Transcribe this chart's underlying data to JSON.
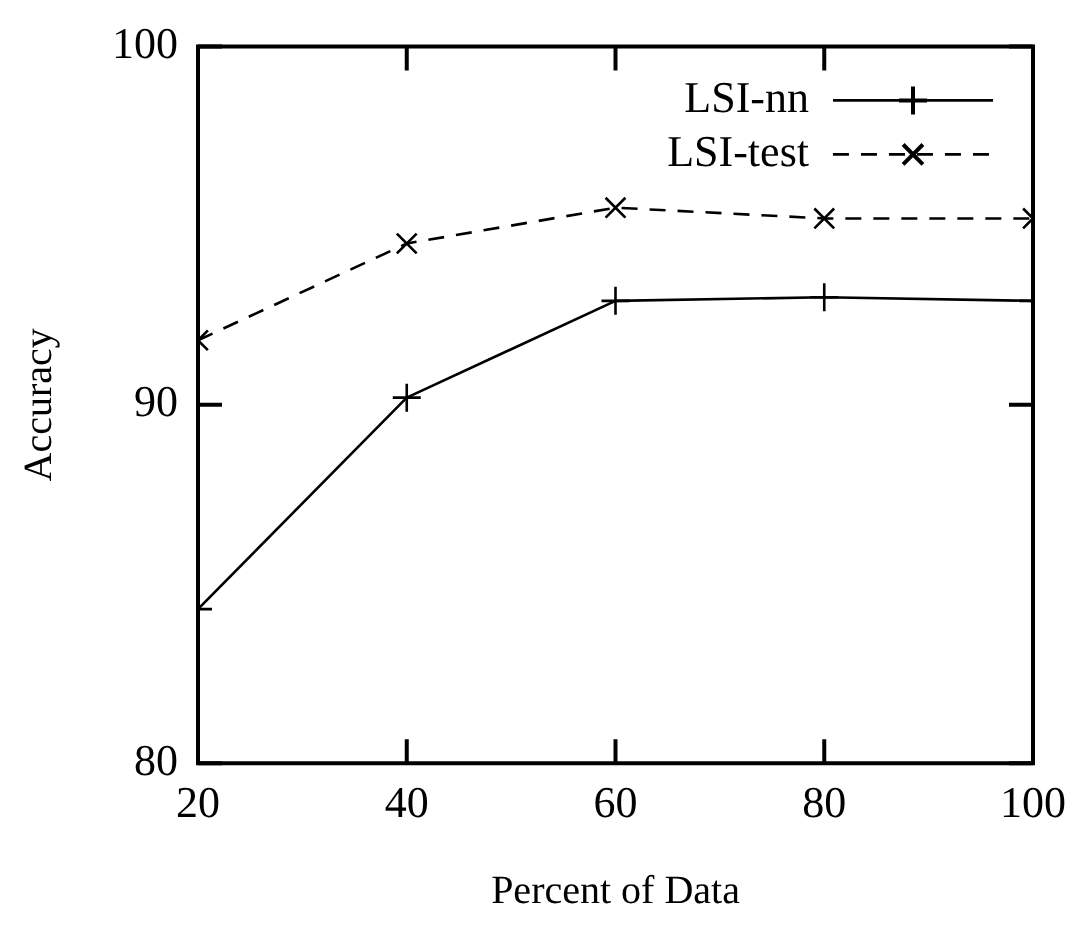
{
  "chart_data": {
    "type": "line",
    "xlabel": "Percent of Data",
    "ylabel": "Accuracy",
    "x": [
      20,
      40,
      60,
      80,
      100
    ],
    "xlim": [
      20,
      100
    ],
    "xticks": [
      20,
      40,
      60,
      80,
      100
    ],
    "ylim": [
      80,
      100
    ],
    "yticks": [
      80,
      90,
      100
    ],
    "grid": false,
    "legend": "top right",
    "series": [
      {
        "name": "LSI-nn",
        "color": "#000000",
        "marker": "plus",
        "line_style": "solid",
        "values": [
          84.3,
          90.2,
          92.9,
          93.0,
          92.9
        ]
      },
      {
        "name": "LSI-test",
        "color": "#000000",
        "marker": "cross",
        "line_style": "dashed",
        "values": [
          91.8,
          94.5,
          95.5,
          95.2,
          95.2
        ]
      }
    ]
  }
}
